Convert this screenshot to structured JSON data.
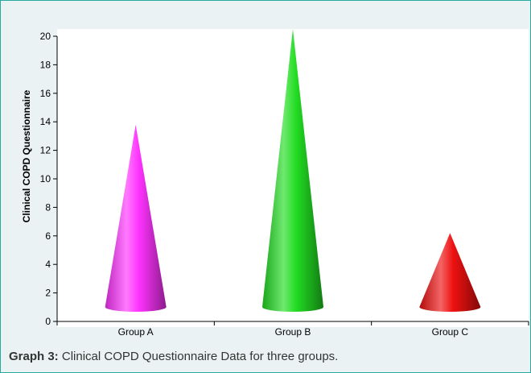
{
  "chart_data": {
    "type": "bar",
    "bar_shape": "cone",
    "categories": [
      "Group A",
      "Group B",
      "Group C"
    ],
    "values": [
      13.8,
      20.5,
      6.2
    ],
    "colors": [
      "#ff33ff",
      "#22dd22",
      "#ee1111"
    ],
    "ylabel": "Clinical COPD Questionnaire",
    "xlabel": "",
    "ylim": [
      0,
      20
    ],
    "yticks": [
      0,
      2,
      4,
      6,
      8,
      10,
      12,
      14,
      16,
      18,
      20
    ],
    "grid": false,
    "legend": "none"
  },
  "caption": {
    "label": "Graph 3:",
    "text": " Clinical COPD Questionnaire Data for three groups."
  }
}
